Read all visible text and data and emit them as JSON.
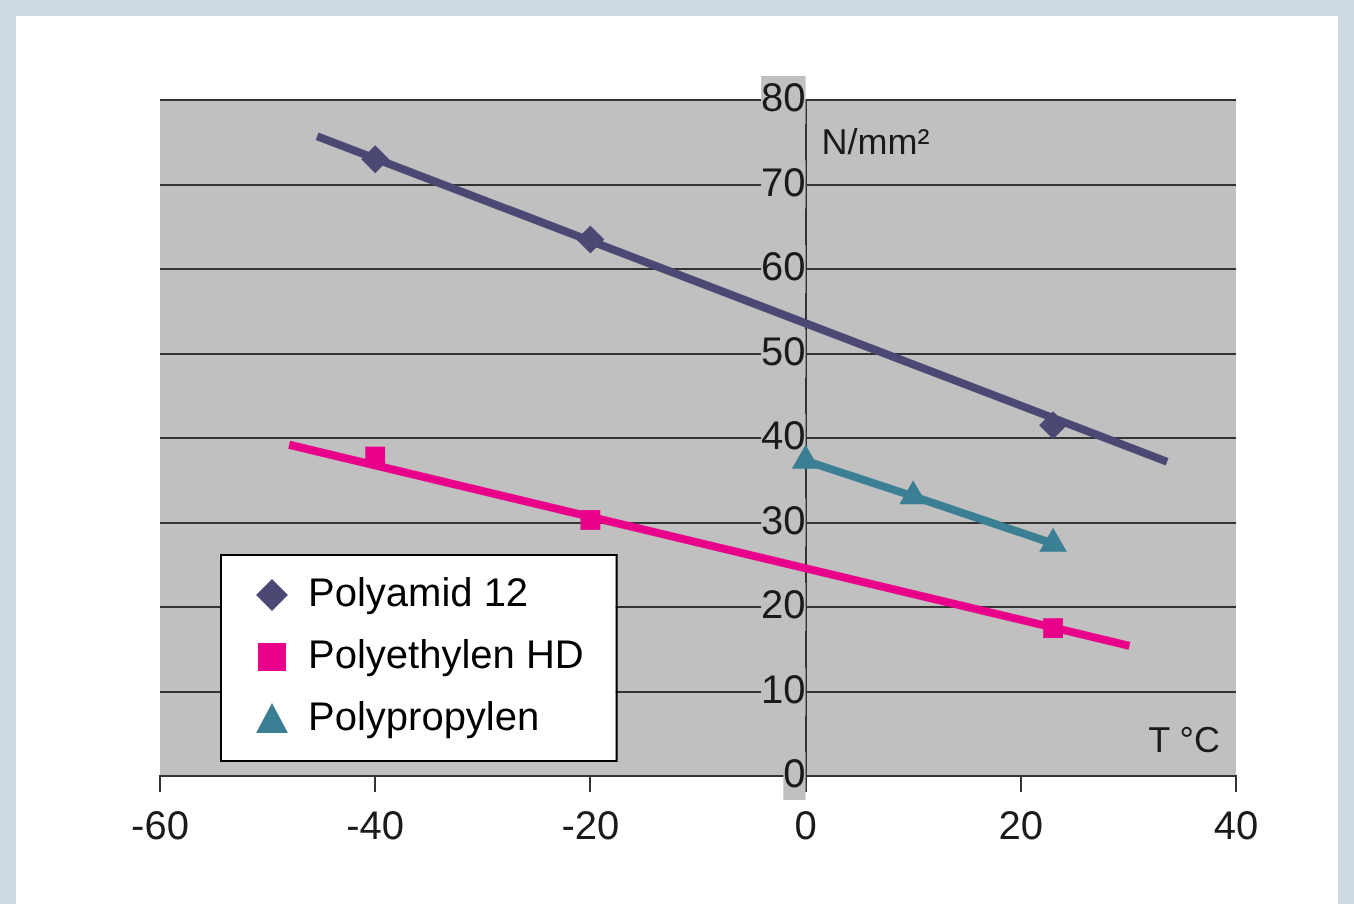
{
  "chart_data": {
    "type": "scatter",
    "xlabel": "T °C",
    "ylabel": "N/mm²",
    "xlim": [
      -60,
      40
    ],
    "xticks": [
      -60,
      -40,
      -20,
      0,
      20,
      40
    ],
    "ylim": [
      0,
      80
    ],
    "yticks": [
      0,
      10,
      20,
      30,
      40,
      50,
      60,
      70,
      80
    ],
    "grid": "y",
    "legend": "bottom left",
    "series": [
      {
        "name": "Polyamid 12",
        "type": "scatter",
        "marker": "diamond",
        "color": "#4b4873",
        "x": [
          -40,
          -20,
          23
        ],
        "values": [
          73,
          63.5,
          41.5
        ]
      },
      {
        "name": "Polyethylen HD",
        "type": "scatter",
        "marker": "square",
        "color": "#e8008a",
        "x": [
          -40,
          -20,
          23
        ],
        "values": [
          37.8,
          30.3,
          17.5
        ]
      },
      {
        "name": "Polypropylen",
        "type": "line",
        "marker": "triangle",
        "color": "#3a7f93",
        "x": [
          0,
          10,
          23
        ],
        "values": [
          37.3,
          33.1,
          27.5
        ]
      },
      {
        "type": "line",
        "marker": "none",
        "color": "#4b4873",
        "x": [
          -45.4,
          33.6
        ],
        "values": [
          75.7,
          37.2
        ]
      },
      {
        "type": "line",
        "marker": "none",
        "color": "#e8008a",
        "x": [
          -48,
          30.1
        ],
        "values": [
          39.2,
          15.4
        ]
      }
    ]
  }
}
